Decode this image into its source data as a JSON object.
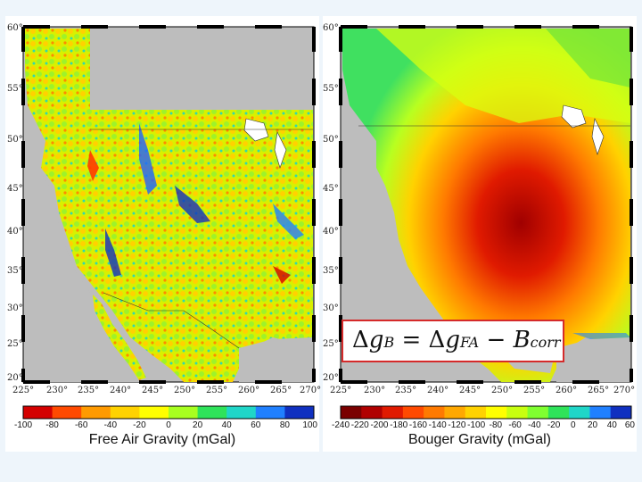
{
  "colors": {
    "page_bg": "#eef5fb",
    "land_gray": "#bdbdbd",
    "equation_border": "#d52a2a"
  },
  "left_map": {
    "colorbar_title": "Free Air Gravity (mGal)",
    "colorbar_ticks": [
      "-100",
      "-80",
      "-60",
      "-40",
      "-20",
      "0",
      "20",
      "40",
      "60",
      "80",
      "100"
    ],
    "colorbar_range": [
      -100,
      100
    ],
    "colorbar_colors": [
      "#d40000",
      "#ff4a00",
      "#ff9a00",
      "#ffd200",
      "#ffff00",
      "#a8ff20",
      "#2fe35a",
      "#20d6c8",
      "#2080ff",
      "#1030c0"
    ]
  },
  "right_map": {
    "colorbar_title": "Bouger Gravity (mGal)",
    "colorbar_ticks": [
      "-240",
      "-220",
      "-200",
      "-180",
      "-160",
      "-140",
      "-120",
      "-100",
      "-80",
      "-60",
      "-40",
      "-20",
      "0",
      "20",
      "40",
      "60"
    ],
    "colorbar_range": [
      -240,
      60
    ],
    "colorbar_colors": [
      "#7a0000",
      "#b00000",
      "#e01a00",
      "#ff4a00",
      "#ff7a00",
      "#ffa800",
      "#ffd200",
      "#ffff00",
      "#c8ff10",
      "#80ff30",
      "#2fe35a",
      "#20d6c8",
      "#2080ff",
      "#1030c0"
    ]
  },
  "latitude_labels": [
    "60°",
    "55°",
    "50°",
    "45°",
    "40°",
    "35°",
    "30°",
    "25°",
    "20°"
  ],
  "longitude_labels": [
    "225°",
    "230°",
    "235°",
    "240°",
    "245°",
    "250°",
    "255°",
    "260°",
    "265°",
    "270°"
  ],
  "equation": {
    "delta": "Δ",
    "g": "g",
    "sub_b": "B",
    "equals": "=",
    "sub_fa": "FA",
    "minus": "−",
    "B": "B",
    "sub_corr": "corr"
  }
}
